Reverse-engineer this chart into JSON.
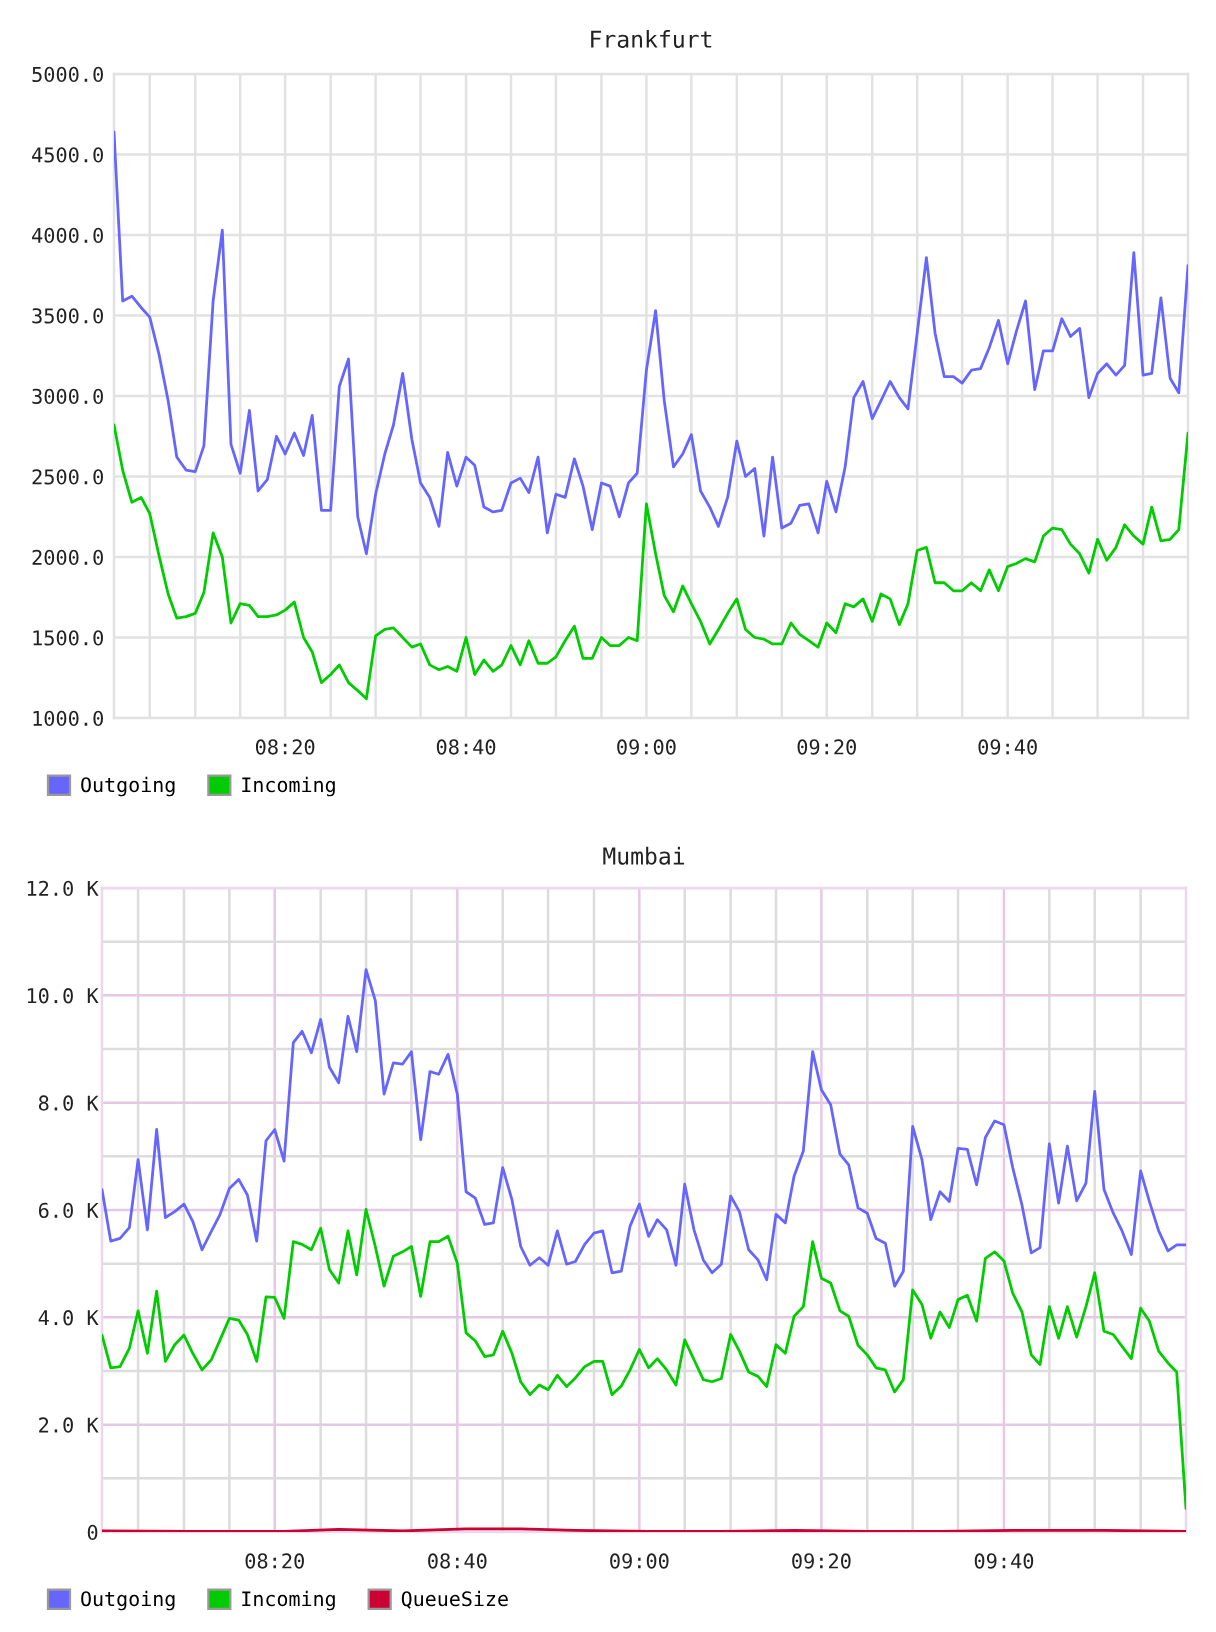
{
  "chart_data": [
    {
      "type": "line",
      "title": "Frankfurt",
      "x": [
        8.017,
        8.033,
        8.05,
        8.067,
        8.083,
        8.1,
        8.117,
        8.133,
        8.15,
        8.167,
        8.183,
        8.2,
        8.217,
        8.233,
        8.25,
        8.267,
        8.283,
        8.3,
        8.317,
        8.333,
        8.35,
        8.367,
        8.383,
        8.4,
        8.417,
        8.433,
        8.45,
        8.467,
        8.483,
        8.5,
        8.517,
        8.533,
        8.55,
        8.567,
        8.583,
        8.6,
        8.617,
        8.633,
        8.65,
        8.667,
        8.683,
        8.7,
        8.717,
        8.733,
        8.75,
        8.767,
        8.783,
        8.8,
        8.817,
        8.833,
        8.85,
        8.867,
        8.883,
        8.9,
        8.917,
        8.933,
        8.95,
        8.967,
        8.983,
        9.0,
        9.017,
        9.033,
        9.05,
        9.067,
        9.083,
        9.1,
        9.117,
        9.133,
        9.15,
        9.167,
        9.183,
        9.2,
        9.217,
        9.233,
        9.25,
        9.267,
        9.283,
        9.3,
        9.317,
        9.333,
        9.35,
        9.367,
        9.383,
        9.4,
        9.417,
        9.433,
        9.45,
        9.467,
        9.483,
        9.5,
        9.517,
        9.533,
        9.55,
        9.567,
        9.583,
        9.6,
        9.617,
        9.633,
        9.65,
        9.667,
        9.683,
        9.7,
        9.717,
        9.733,
        9.75,
        9.767,
        9.783,
        9.8,
        9.817,
        9.833,
        9.85,
        9.867,
        9.883,
        9.9,
        9.917,
        9.933,
        9.95,
        9.967,
        9.983,
        10.0
      ],
      "series": [
        {
          "name": "Outgoing",
          "color": "#6666ff",
          "values": [
            4640,
            3590,
            3620,
            3550,
            3490,
            3260,
            2970,
            2620,
            2540,
            2530,
            2690,
            3590,
            4030,
            2700,
            2520,
            2910,
            2410,
            2480,
            2750,
            2640,
            2770,
            2630,
            2880,
            2290,
            2290,
            3060,
            3230,
            2250,
            2020,
            2390,
            2640,
            2820,
            3140,
            2730,
            2460,
            2370,
            2190,
            2650,
            2440,
            2620,
            2570,
            2310,
            2280,
            2290,
            2460,
            2490,
            2400,
            2620,
            2150,
            2390,
            2370,
            2610,
            2440,
            2170,
            2460,
            2440,
            2250,
            2460,
            2520,
            3160,
            3530,
            2970,
            2560,
            2640,
            2760,
            2410,
            2310,
            2190,
            2370,
            2720,
            2500,
            2550,
            2130,
            2620,
            2180,
            2210,
            2320,
            2330,
            2150,
            2470,
            2280,
            2560,
            2990,
            3090,
            2860,
            2970,
            3090,
            2990,
            2920,
            3390,
            3860,
            3390,
            3120,
            3120,
            3080,
            3160,
            3170,
            3300,
            3470,
            3200,
            3400,
            3590,
            3040,
            3280,
            3280,
            3480,
            3370,
            3420,
            2990,
            3140,
            3200,
            3130,
            3190,
            3890,
            3130,
            3140,
            3610,
            3110,
            3020,
            3810
          ]
        },
        {
          "name": "Incoming",
          "color": "#00cc00",
          "values": [
            2820,
            2540,
            2340,
            2370,
            2270,
            2010,
            1770,
            1620,
            1630,
            1650,
            1780,
            2150,
            2000,
            1590,
            1710,
            1700,
            1630,
            1630,
            1640,
            1670,
            1720,
            1500,
            1410,
            1220,
            1270,
            1330,
            1220,
            1170,
            1120,
            1510,
            1550,
            1560,
            1500,
            1440,
            1460,
            1330,
            1300,
            1320,
            1290,
            1500,
            1270,
            1360,
            1290,
            1330,
            1450,
            1330,
            1480,
            1340,
            1340,
            1380,
            1480,
            1570,
            1370,
            1370,
            1500,
            1450,
            1450,
            1500,
            1480,
            2330,
            2020,
            1760,
            1660,
            1820,
            1710,
            1600,
            1460,
            1550,
            1650,
            1740,
            1550,
            1500,
            1490,
            1460,
            1460,
            1590,
            1520,
            1480,
            1440,
            1590,
            1530,
            1710,
            1690,
            1740,
            1600,
            1770,
            1740,
            1580,
            1710,
            2040,
            2060,
            1840,
            1840,
            1790,
            1790,
            1840,
            1790,
            1920,
            1790,
            1940,
            1960,
            1990,
            1970,
            2130,
            2180,
            2170,
            2080,
            2020,
            1900,
            2110,
            1980,
            2060,
            2200,
            2130,
            2080,
            2310,
            2100,
            2110,
            2170,
            2770
          ]
        }
      ],
      "xlim": [
        8.017,
        10.0
      ],
      "ylim": [
        1000,
        5000
      ],
      "xticks": [
        {
          "value": 8.083,
          "label": null
        },
        {
          "value": 8.167,
          "label": null
        },
        {
          "value": 8.25,
          "label": null
        },
        {
          "value": 8.333,
          "label": "08:20"
        },
        {
          "value": 8.417,
          "label": null
        },
        {
          "value": 8.5,
          "label": null
        },
        {
          "value": 8.583,
          "label": null
        },
        {
          "value": 8.667,
          "label": "08:40"
        },
        {
          "value": 8.75,
          "label": null
        },
        {
          "value": 8.833,
          "label": null
        },
        {
          "value": 8.917,
          "label": null
        },
        {
          "value": 9.0,
          "label": "09:00"
        },
        {
          "value": 9.083,
          "label": null
        },
        {
          "value": 9.167,
          "label": null
        },
        {
          "value": 9.25,
          "label": null
        },
        {
          "value": 9.333,
          "label": "09:20"
        },
        {
          "value": 9.417,
          "label": null
        },
        {
          "value": 9.5,
          "label": null
        },
        {
          "value": 9.583,
          "label": null
        },
        {
          "value": 9.667,
          "label": "09:40"
        },
        {
          "value": 9.75,
          "label": null
        },
        {
          "value": 9.833,
          "label": null
        },
        {
          "value": 9.917,
          "label": null
        }
      ],
      "yticks": [
        {
          "value": 1000,
          "label": "1000.0"
        },
        {
          "value": 1500,
          "label": "1500.0"
        },
        {
          "value": 2000,
          "label": "2000.0"
        },
        {
          "value": 2500,
          "label": "2500.0"
        },
        {
          "value": 3000,
          "label": "3000.0"
        },
        {
          "value": 3500,
          "label": "3500.0"
        },
        {
          "value": 4000,
          "label": "4000.0"
        },
        {
          "value": 4500,
          "label": "4500.0"
        },
        {
          "value": 5000,
          "label": "5000.0"
        }
      ],
      "grid": true,
      "legend": "bottom left"
    },
    {
      "type": "line",
      "title": "Mumbai",
      "x": [
        8.017,
        8.033,
        8.05,
        8.067,
        8.083,
        8.1,
        8.117,
        8.133,
        8.15,
        8.167,
        8.183,
        8.2,
        8.217,
        8.233,
        8.25,
        8.267,
        8.283,
        8.3,
        8.317,
        8.333,
        8.35,
        8.367,
        8.383,
        8.4,
        8.417,
        8.433,
        8.45,
        8.467,
        8.483,
        8.5,
        8.517,
        8.533,
        8.55,
        8.567,
        8.583,
        8.6,
        8.617,
        8.633,
        8.65,
        8.667,
        8.683,
        8.7,
        8.717,
        8.733,
        8.75,
        8.767,
        8.783,
        8.8,
        8.817,
        8.833,
        8.85,
        8.867,
        8.883,
        8.9,
        8.917,
        8.933,
        8.95,
        8.967,
        8.983,
        9.0,
        9.017,
        9.033,
        9.05,
        9.067,
        9.083,
        9.1,
        9.117,
        9.133,
        9.15,
        9.167,
        9.183,
        9.2,
        9.217,
        9.233,
        9.25,
        9.267,
        9.283,
        9.3,
        9.317,
        9.333,
        9.35,
        9.367,
        9.383,
        9.4,
        9.417,
        9.433,
        9.45,
        9.467,
        9.483,
        9.5,
        9.517,
        9.533,
        9.55,
        9.567,
        9.583,
        9.6,
        9.617,
        9.633,
        9.65,
        9.667,
        9.683,
        9.7,
        9.717,
        9.733,
        9.75,
        9.767,
        9.783,
        9.8,
        9.817,
        9.833,
        9.85,
        9.867,
        9.883,
        9.9,
        9.917,
        9.933,
        9.95,
        9.967,
        9.983,
        10.0
      ],
      "series": [
        {
          "name": "Outgoing",
          "color": "#6666ff",
          "values": [
            6380,
            5420,
            5470,
            5670,
            6940,
            5630,
            7500,
            5860,
            5970,
            6110,
            5790,
            5260,
            5600,
            5920,
            6400,
            6570,
            6280,
            5420,
            7290,
            7500,
            6910,
            9120,
            9330,
            8930,
            9550,
            8660,
            8370,
            9610,
            8950,
            10480,
            9900,
            8160,
            8740,
            8720,
            8950,
            7310,
            8580,
            8530,
            8900,
            8160,
            6340,
            6220,
            5730,
            5760,
            6790,
            6190,
            5320,
            4970,
            5110,
            4970,
            5610,
            4990,
            5040,
            5360,
            5570,
            5610,
            4830,
            4860,
            5700,
            6110,
            5510,
            5820,
            5630,
            4970,
            6480,
            5630,
            5070,
            4830,
            4990,
            6260,
            5970,
            5260,
            5070,
            4700,
            5920,
            5760,
            6630,
            7100,
            8950,
            8240,
            7960,
            7040,
            6840,
            6040,
            5940,
            5470,
            5380,
            4580,
            4860,
            7560,
            6940,
            5820,
            6340,
            6160,
            7150,
            7130,
            6470,
            7350,
            7660,
            7590,
            6790,
            6090,
            5200,
            5300,
            7230,
            6130,
            7190,
            6170,
            6500,
            8210,
            6380,
            5940,
            5610,
            5170,
            6730,
            6160,
            5610,
            5240,
            5350,
            5350
          ]
        },
        {
          "name": "Incoming",
          "color": "#00cc00",
          "values": [
            3670,
            3060,
            3080,
            3420,
            4120,
            3330,
            4490,
            3180,
            3490,
            3670,
            3330,
            3020,
            3210,
            3580,
            3980,
            3950,
            3680,
            3180,
            4380,
            4370,
            3980,
            5410,
            5360,
            5260,
            5660,
            4890,
            4640,
            5610,
            4790,
            6010,
            5320,
            4580,
            5140,
            5220,
            5320,
            4390,
            5410,
            5410,
            5510,
            5010,
            3710,
            3560,
            3270,
            3300,
            3740,
            3330,
            2800,
            2560,
            2740,
            2650,
            2920,
            2710,
            2870,
            3080,
            3180,
            3180,
            2560,
            2720,
            3020,
            3400,
            3060,
            3230,
            3020,
            2740,
            3580,
            3210,
            2840,
            2800,
            2860,
            3680,
            3370,
            2980,
            2900,
            2710,
            3490,
            3330,
            4020,
            4200,
            5410,
            4730,
            4640,
            4120,
            4020,
            3480,
            3300,
            3060,
            3020,
            2610,
            2840,
            4510,
            4240,
            3610,
            4100,
            3810,
            4330,
            4410,
            3930,
            5100,
            5220,
            5050,
            4450,
            4100,
            3300,
            3120,
            4200,
            3610,
            4200,
            3630,
            4200,
            4830,
            3740,
            3680,
            3460,
            3230,
            4170,
            3930,
            3370,
            3150,
            2980,
            440
          ]
        },
        {
          "name": "QueueSize",
          "color": "#cc0033",
          "x": [
            8.017,
            8.183,
            8.35,
            8.45,
            8.567,
            8.683,
            8.783,
            8.883,
            9.017,
            9.15,
            9.283,
            9.417,
            9.55,
            9.683,
            9.85,
            10.0
          ],
          "values": [
            20,
            10,
            10,
            50,
            20,
            60,
            60,
            30,
            10,
            10,
            30,
            10,
            10,
            30,
            30,
            10
          ]
        }
      ],
      "xlim": [
        8.017,
        10.0
      ],
      "ylim": [
        0,
        12000
      ],
      "xticks": [
        {
          "value": 8.083,
          "label": null
        },
        {
          "value": 8.167,
          "label": null
        },
        {
          "value": 8.25,
          "label": null
        },
        {
          "value": 8.333,
          "label": "08:20"
        },
        {
          "value": 8.417,
          "label": null
        },
        {
          "value": 8.5,
          "label": null
        },
        {
          "value": 8.583,
          "label": null
        },
        {
          "value": 8.667,
          "label": "08:40"
        },
        {
          "value": 8.75,
          "label": null
        },
        {
          "value": 8.833,
          "label": null
        },
        {
          "value": 8.917,
          "label": null
        },
        {
          "value": 9.0,
          "label": "09:00"
        },
        {
          "value": 9.083,
          "label": null
        },
        {
          "value": 9.167,
          "label": null
        },
        {
          "value": 9.25,
          "label": null
        },
        {
          "value": 9.333,
          "label": "09:20"
        },
        {
          "value": 9.417,
          "label": null
        },
        {
          "value": 9.5,
          "label": null
        },
        {
          "value": 9.583,
          "label": null
        },
        {
          "value": 9.667,
          "label": "09:40"
        },
        {
          "value": 9.75,
          "label": null
        },
        {
          "value": 9.833,
          "label": null
        },
        {
          "value": 9.917,
          "label": null
        }
      ],
      "yticks": [
        0,
        {
          "value": 1000,
          "label": null
        },
        {
          "value": 2000,
          "label": "2.0 K"
        },
        {
          "value": 3000,
          "label": null
        },
        {
          "value": 4000,
          "label": "4.0 K"
        },
        {
          "value": 5000,
          "label": null
        },
        {
          "value": 6000,
          "label": "6.0 K"
        },
        {
          "value": 7000,
          "label": null
        },
        {
          "value": 8000,
          "label": "8.0 K"
        },
        {
          "value": 9000,
          "label": null
        },
        {
          "value": 10000,
          "label": "10.0 K"
        },
        {
          "value": 11000,
          "label": null
        },
        {
          "value": 12000,
          "label": "12.0 K"
        }
      ],
      "grid": true,
      "legend": "bottom left"
    }
  ]
}
